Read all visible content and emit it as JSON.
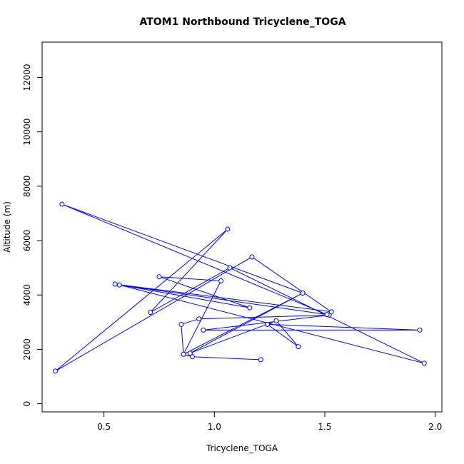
{
  "chart_data": {
    "type": "line",
    "title": "ATOM1 Northbound Tricyclene_TOGA",
    "xlabel": "Tricyclene_TOGA",
    "ylabel": "Altitude (m)",
    "xlim": [
      0.22,
      2.03
    ],
    "ylim": [
      -300,
      13300
    ],
    "xticks": [
      0.5,
      1.0,
      1.5,
      2.0
    ],
    "xtick_labels": [
      "0.5",
      "1.0",
      "1.5",
      "2.0"
    ],
    "yticks": [
      0,
      2000,
      4000,
      6000,
      8000,
      10000,
      12000
    ],
    "ytick_labels": [
      "0",
      "2000",
      "4000",
      "6000",
      "8000",
      "10000",
      "12000"
    ],
    "grid": false,
    "color": "#0000ff",
    "series": [
      {
        "x": [
          1.21,
          0.9,
          0.86,
          0.85,
          0.93,
          1.52,
          0.95,
          1.93,
          1.24,
          1.38,
          1.28,
          0.89,
          1.4,
          0.86,
          1.03,
          0.75,
          1.16,
          0.55,
          1.53,
          1.17,
          0.28,
          1.06,
          0.71,
          1.07,
          1.95,
          0.57,
          1.51,
          0.31,
          1.4
        ],
        "y": [
          1620,
          1730,
          1820,
          2920,
          3120,
          3260,
          2710,
          2710,
          2920,
          2100,
          3050,
          1860,
          4070,
          1820,
          4520,
          4670,
          3530,
          4400,
          3380,
          5400,
          1200,
          6420,
          3360,
          5000,
          1490,
          4370,
          3280,
          7340,
          4070
        ]
      }
    ]
  }
}
